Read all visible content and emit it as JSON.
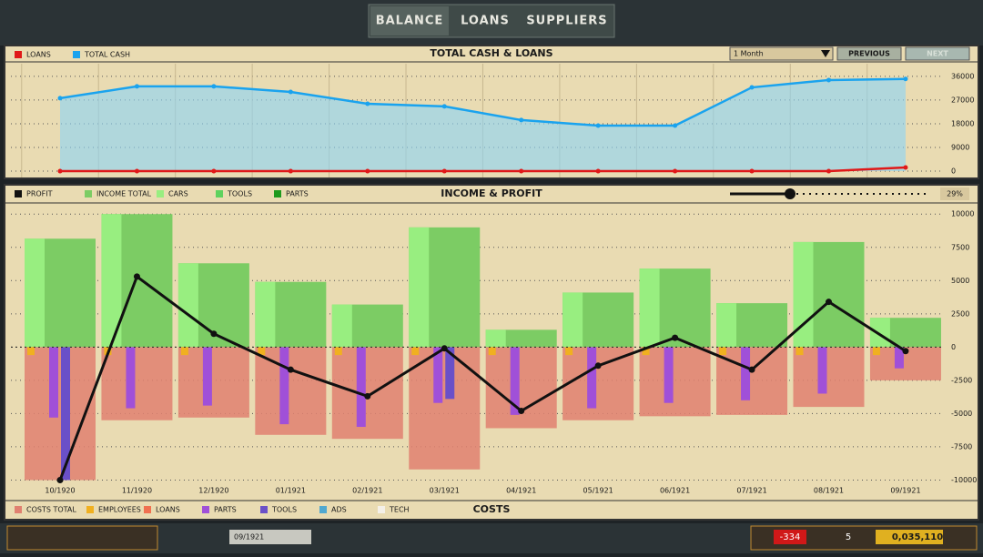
{
  "tabs": [
    "BALANCE",
    "LOANS",
    "SUPPLIERS"
  ],
  "controls": {
    "period": "1 Month",
    "previous": "PREVIOUS",
    "next": "NEXT",
    "slider": "29%"
  },
  "status": {
    "date": "09/1921",
    "alerts": "-334",
    "stars": "5",
    "money": "0,035,110"
  },
  "chart_data": [
    {
      "type": "line",
      "title": "TOTAL CASH & LOANS",
      "series": [
        {
          "name": "LOANS",
          "color": "#e01818",
          "values": [
            0,
            0,
            0,
            0,
            0,
            0,
            0,
            0,
            0,
            0,
            0,
            1400
          ]
        },
        {
          "name": "TOTAL CASH",
          "color": "#1aa3ee",
          "values": [
            27700,
            32200,
            32200,
            30100,
            25600,
            24600,
            19400,
            17300,
            17300,
            31800,
            34600,
            35000
          ]
        }
      ],
      "ylim": [
        -2400,
        40800
      ],
      "yticks": [
        0,
        9000,
        18000,
        27000,
        36000
      ]
    },
    {
      "type": "bar",
      "title": "INCOME & PROFIT",
      "costs_title": "COSTS",
      "categories": [
        "10/1920",
        "11/1920",
        "12/1920",
        "01/1921",
        "02/1921",
        "03/1921",
        "04/1921",
        "05/1921",
        "06/1921",
        "07/1921",
        "08/1921",
        "09/1921"
      ],
      "series": [
        {
          "name": "PROFIT",
          "color": "#111111",
          "values": [
            -10000,
            5300,
            1000,
            -1700,
            -3700,
            -100,
            -4800,
            -1400,
            700,
            -1700,
            3400,
            -300
          ]
        },
        {
          "name": "INCOME TOTAL",
          "color": "#7ccc64",
          "values": [
            8150,
            10000,
            6300,
            4900,
            3200,
            9000,
            1300,
            4100,
            5900,
            3300,
            7900,
            2200
          ]
        },
        {
          "name": "CARS",
          "color": "#98ee80",
          "values": [
            8150,
            10000,
            6300,
            4900,
            3200,
            9000,
            1300,
            4100,
            5900,
            3300,
            7900,
            2200
          ]
        },
        {
          "name": "TOOLS",
          "color": "#5ed25e",
          "values": [
            0,
            0,
            0,
            0,
            0,
            0,
            0,
            0,
            0,
            0,
            0,
            0
          ]
        },
        {
          "name": "PARTS",
          "color": "#1e9a1e",
          "values": [
            0,
            0,
            0,
            0,
            0,
            0,
            0,
            0,
            0,
            0,
            0,
            0
          ]
        }
      ],
      "cost_series": [
        {
          "name": "COSTS TOTAL",
          "color": "#e08070",
          "values": [
            -10000,
            -5500,
            -5300,
            -6600,
            -6900,
            -9200,
            -6100,
            -5500,
            -5200,
            -5100,
            -4500,
            -2500
          ]
        },
        {
          "name": "EMPLOYEES",
          "color": "#f0b020",
          "values": [
            -600,
            -600,
            -600,
            -600,
            -600,
            -600,
            -600,
            -600,
            -600,
            -600,
            -600,
            -600
          ]
        },
        {
          "name": "LOANS",
          "color": "#f07050",
          "values": [
            0,
            0,
            0,
            0,
            0,
            0,
            0,
            0,
            0,
            0,
            0,
            0
          ]
        },
        {
          "name": "PARTS",
          "color": "#a050d8",
          "values": [
            -5300,
            -4600,
            -4400,
            -5800,
            -6000,
            -4200,
            -5100,
            -4600,
            -4200,
            -4000,
            -3500,
            -1600
          ]
        },
        {
          "name": "TOOLS",
          "color": "#6a50c8",
          "values": [
            -10000,
            0,
            0,
            0,
            0,
            -3900,
            0,
            0,
            0,
            0,
            0,
            0
          ]
        },
        {
          "name": "ADS",
          "color": "#50a8d0",
          "values": [
            0,
            0,
            0,
            0,
            0,
            0,
            0,
            0,
            0,
            0,
            0,
            0
          ]
        },
        {
          "name": "TECH",
          "color": "#f4f0e8",
          "values": [
            0,
            0,
            0,
            0,
            0,
            0,
            0,
            0,
            0,
            0,
            0,
            0
          ]
        }
      ],
      "ylim": [
        -11200,
        10700
      ],
      "yticks": [
        10000,
        7500,
        5000,
        2500,
        0,
        -2500,
        -5000,
        -7500,
        -10000
      ]
    }
  ]
}
